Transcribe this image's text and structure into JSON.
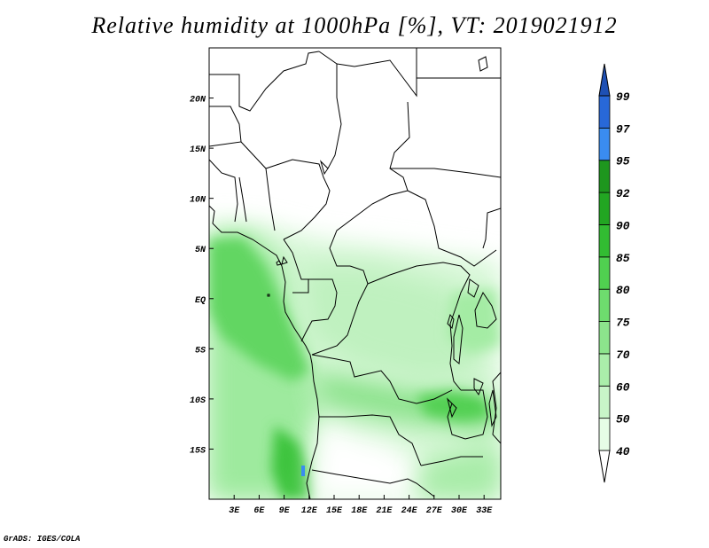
{
  "title": "Relative humidity at 1000hPa [%], VT: 2019021912",
  "credit": "GrADS: IGES/COLA",
  "map": {
    "lon_range": [
      0,
      35
    ],
    "lat_range": [
      -20,
      25
    ],
    "x_ticks": [
      "3E",
      "6E",
      "9E",
      "12E",
      "15E",
      "18E",
      "21E",
      "24E",
      "27E",
      "30E",
      "33E"
    ],
    "x_tick_values": [
      3,
      6,
      9,
      12,
      15,
      18,
      21,
      24,
      27,
      30,
      33
    ],
    "y_ticks": [
      "20N",
      "15N",
      "10N",
      "5N",
      "EQ",
      "5S",
      "10S",
      "15S"
    ],
    "y_tick_values": [
      20,
      15,
      10,
      5,
      0,
      -5,
      -10,
      -15
    ]
  },
  "legend": {
    "labels": [
      "40",
      "50",
      "60",
      "70",
      "75",
      "80",
      "85",
      "90",
      "92",
      "95",
      "97",
      "99"
    ],
    "colors": [
      "#ffffff",
      "#e6fde6",
      "#c8f5c8",
      "#aaeeaa",
      "#8ce48c",
      "#6edc6e",
      "#50d050",
      "#32bc32",
      "#22a622",
      "#1e961e",
      "#3a8cf0",
      "#2868d8",
      "#1e50b4"
    ]
  }
}
